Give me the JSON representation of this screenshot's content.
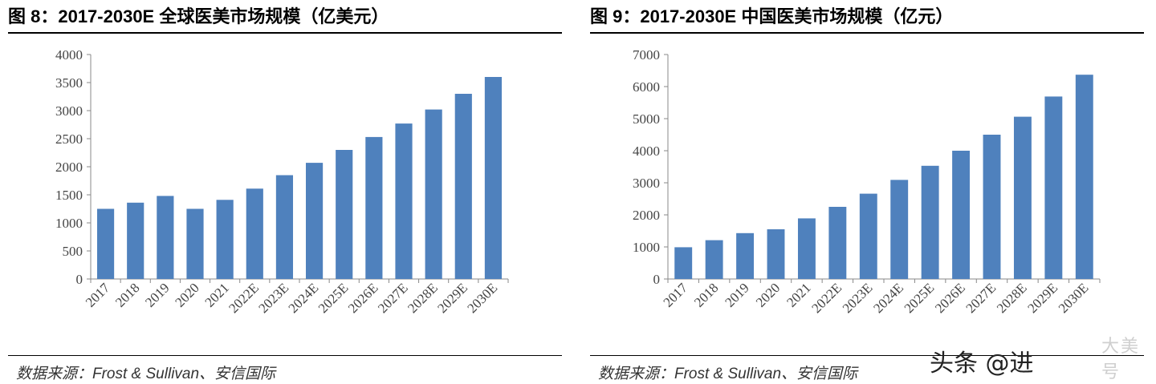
{
  "charts": [
    {
      "title": "图 8：2017-2030E 全球医美市场规模（亿美元）",
      "source": "数据来源：Frost & Sullivan、安信国际"
    },
    {
      "title": "图 9：2017-2030E 中国医美市场规模（亿元）",
      "source": "数据来源：Frost & Sullivan、安信国际"
    }
  ],
  "chart_data": [
    {
      "type": "bar",
      "title": "图 8：2017-2030E 全球医美市场规模（亿美元）",
      "categories": [
        "2017",
        "2018",
        "2019",
        "2020",
        "2021",
        "2022E",
        "2023E",
        "2024E",
        "2025E",
        "2026E",
        "2027E",
        "2028E",
        "2029E",
        "2030E"
      ],
      "values": [
        1250,
        1360,
        1480,
        1250,
        1410,
        1610,
        1850,
        2070,
        2300,
        2530,
        2770,
        3020,
        3300,
        3600
      ],
      "ylim": [
        0,
        4000
      ],
      "yticks": [
        0,
        500,
        1000,
        1500,
        2000,
        2500,
        3000,
        3500,
        4000
      ],
      "xlabel": "",
      "ylabel": "",
      "grid": false,
      "bar_color": "#4f81bd"
    },
    {
      "type": "bar",
      "title": "图 9：2017-2030E 中国医美市场规模（亿元）",
      "categories": [
        "2017",
        "2018",
        "2019",
        "2020",
        "2021",
        "2022E",
        "2023E",
        "2024E",
        "2025E",
        "2026E",
        "2027E",
        "2028E",
        "2029E",
        "2030E"
      ],
      "values": [
        990,
        1210,
        1430,
        1550,
        1890,
        2250,
        2660,
        3090,
        3530,
        4000,
        4500,
        5060,
        5690,
        6370
      ],
      "ylim": [
        0,
        7000
      ],
      "yticks": [
        0,
        1000,
        2000,
        3000,
        4000,
        5000,
        6000,
        7000
      ],
      "xlabel": "",
      "ylabel": "",
      "grid": false,
      "bar_color": "#4f81bd"
    }
  ],
  "watermark": {
    "text": "头条 @进",
    "stamp_text": "大美号"
  }
}
